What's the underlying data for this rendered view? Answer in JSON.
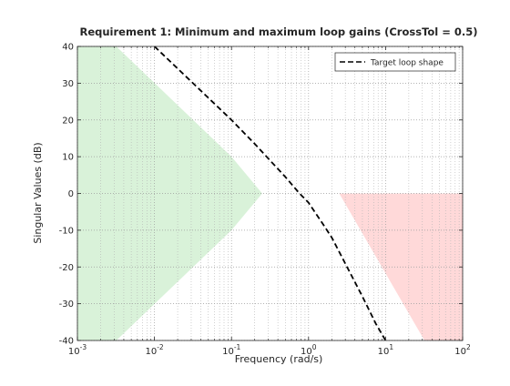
{
  "chart_data": {
    "type": "line",
    "title": "Requirement 1: Minimum and maximum loop gains (CrossTol = 0.5)",
    "xlabel": "Frequency (rad/s)",
    "ylabel": "Singular Values (dB)",
    "xscale": "log",
    "xlim": [
      0.001,
      100
    ],
    "ylim": [
      -40,
      40
    ],
    "x_ticks": [
      {
        "value": 0.001,
        "base": "10",
        "exp": "-3"
      },
      {
        "value": 0.01,
        "base": "10",
        "exp": "-2"
      },
      {
        "value": 0.1,
        "base": "10",
        "exp": "-1"
      },
      {
        "value": 1,
        "base": "10",
        "exp": "0"
      },
      {
        "value": 10,
        "base": "10",
        "exp": "1"
      },
      {
        "value": 100,
        "base": "10",
        "exp": "2"
      }
    ],
    "y_ticks": [
      {
        "value": 40,
        "label": "40"
      },
      {
        "value": 30,
        "label": "30"
      },
      {
        "value": 20,
        "label": "20"
      },
      {
        "value": 10,
        "label": "10"
      },
      {
        "value": 0,
        "label": "0"
      },
      {
        "value": -10,
        "label": "-10"
      },
      {
        "value": -20,
        "label": "-20"
      },
      {
        "value": -30,
        "label": "-30"
      },
      {
        "value": -40,
        "label": "-40"
      }
    ],
    "grid": true,
    "minor_grid": true,
    "legend": {
      "position": "top-right",
      "entries": [
        "Target loop shape"
      ]
    },
    "series": [
      {
        "name": "Target loop shape",
        "color": "#000000",
        "style": "dashed",
        "x": [
          0.01,
          0.0316,
          0.1,
          0.2,
          0.316,
          0.5,
          0.75,
          1.0,
          1.5,
          2.0,
          3.16,
          5.0,
          7.5,
          10.0
        ],
        "y": [
          40.0,
          30.0,
          20.0,
          13.5,
          9.0,
          4.5,
          0.2,
          -2.5,
          -8.0,
          -12.0,
          -20.0,
          -28.0,
          -35.5,
          -40.0
        ]
      }
    ],
    "regions": [
      {
        "label": "minimum gain",
        "color": "#d9f2d9",
        "x": [
          0.001,
          0.0032,
          0.1,
          0.25,
          0.1,
          0.0032,
          0.001
        ],
        "y": [
          40,
          40,
          10,
          0,
          -10,
          -40,
          -40
        ]
      },
      {
        "label": "maximum gain",
        "color": "#ffd9d9",
        "x": [
          2.5,
          100,
          100,
          32
        ],
        "y": [
          0,
          0,
          -40,
          -40
        ]
      }
    ]
  }
}
